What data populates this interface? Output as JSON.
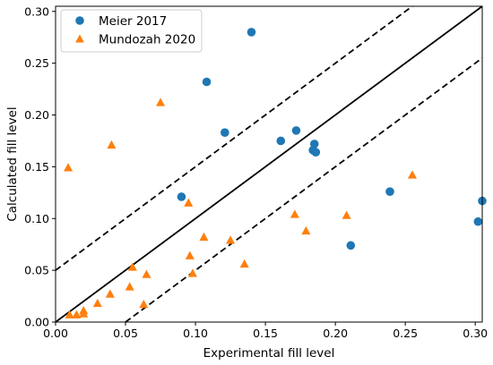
{
  "chart_data": {
    "type": "scatter",
    "title": "",
    "xlabel": "Experimental fill level",
    "ylabel": "Calculated fill level",
    "xlim": [
      0.0,
      0.305
    ],
    "ylim": [
      0.0,
      0.305
    ],
    "xticks": [
      "0.00",
      "0.05",
      "0.10",
      "0.15",
      "0.20",
      "0.25",
      "0.30"
    ],
    "yticks": [
      "0.00",
      "0.05",
      "0.10",
      "0.15",
      "0.20",
      "0.25",
      "0.30"
    ],
    "grid": false,
    "legend_position": "top-left",
    "reference_lines": [
      {
        "style": "solid",
        "offset": 0.0
      },
      {
        "style": "dashed",
        "offset": 0.05
      },
      {
        "style": "dashed",
        "offset": -0.05
      }
    ],
    "series": [
      {
        "name": "Meier 2017",
        "marker": "circle",
        "color": "#1f77b4",
        "points": [
          [
            0.09,
            0.121
          ],
          [
            0.108,
            0.232
          ],
          [
            0.121,
            0.183
          ],
          [
            0.14,
            0.28
          ],
          [
            0.161,
            0.175
          ],
          [
            0.172,
            0.185
          ],
          [
            0.184,
            0.166
          ],
          [
            0.185,
            0.172
          ],
          [
            0.186,
            0.164
          ],
          [
            0.211,
            0.074
          ],
          [
            0.239,
            0.126
          ],
          [
            0.302,
            0.097
          ],
          [
            0.305,
            0.117
          ]
        ]
      },
      {
        "name": "Mundozah 2020",
        "marker": "triangle",
        "color": "#ff7f0e",
        "points": [
          [
            0.009,
            0.149
          ],
          [
            0.01,
            0.007
          ],
          [
            0.015,
            0.007
          ],
          [
            0.02,
            0.011
          ],
          [
            0.02,
            0.008
          ],
          [
            0.03,
            0.018
          ],
          [
            0.039,
            0.027
          ],
          [
            0.04,
            0.171
          ],
          [
            0.053,
            0.034
          ],
          [
            0.055,
            0.053
          ],
          [
            0.063,
            0.017
          ],
          [
            0.065,
            0.046
          ],
          [
            0.075,
            0.212
          ],
          [
            0.095,
            0.115
          ],
          [
            0.096,
            0.064
          ],
          [
            0.098,
            0.047
          ],
          [
            0.106,
            0.082
          ],
          [
            0.125,
            0.079
          ],
          [
            0.135,
            0.056
          ],
          [
            0.171,
            0.104
          ],
          [
            0.179,
            0.088
          ],
          [
            0.208,
            0.103
          ],
          [
            0.255,
            0.142
          ]
        ]
      }
    ]
  }
}
